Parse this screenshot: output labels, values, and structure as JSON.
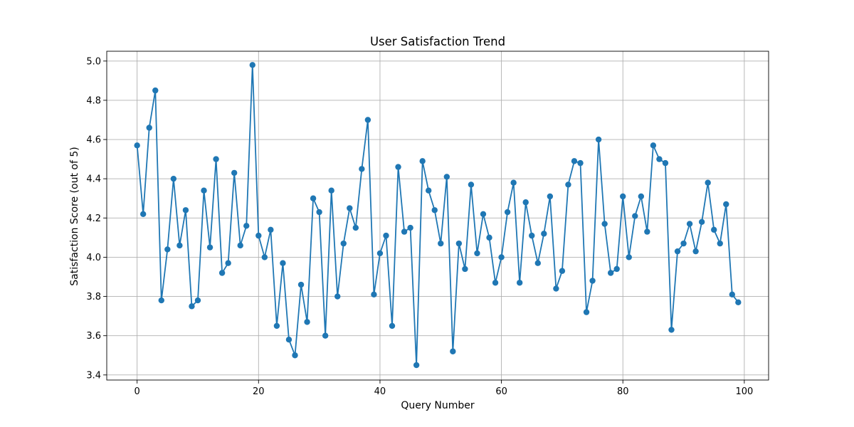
{
  "chart_data": {
    "type": "line",
    "title": "User Satisfaction Trend",
    "xlabel": "Query Number",
    "ylabel": "Satisfaction Score (out of 5)",
    "xlim": [
      -5.0,
      104.0
    ],
    "ylim": [
      3.374,
      5.05
    ],
    "grid": true,
    "xticks": [
      0,
      20,
      40,
      60,
      80,
      100
    ],
    "yticks": [
      3.4,
      3.6,
      3.8,
      4.0,
      4.2,
      4.4,
      4.6,
      4.8,
      5.0
    ],
    "xtick_labels": [
      "0",
      "20",
      "40",
      "60",
      "80",
      "100"
    ],
    "ytick_labels": [
      "3.4",
      "3.6",
      "3.8",
      "4.0",
      "4.2",
      "4.4",
      "4.6",
      "4.8",
      "5.0"
    ],
    "colors": {
      "series": "#1f77b4",
      "grid": "#b0b0b0"
    },
    "series": [
      {
        "marker": "circle",
        "x": [
          0,
          1,
          2,
          3,
          4,
          5,
          6,
          7,
          8,
          9,
          10,
          11,
          12,
          13,
          14,
          15,
          16,
          17,
          18,
          19,
          20,
          21,
          22,
          23,
          24,
          25,
          26,
          27,
          28,
          29,
          30,
          31,
          32,
          33,
          34,
          35,
          36,
          37,
          38,
          39,
          40,
          41,
          42,
          43,
          44,
          45,
          46,
          47,
          48,
          49,
          50,
          51,
          52,
          53,
          54,
          55,
          56,
          57,
          58,
          59,
          60,
          61,
          62,
          63,
          64,
          65,
          66,
          67,
          68,
          69,
          70,
          71,
          72,
          73,
          74,
          75,
          76,
          77,
          78,
          79,
          80,
          81,
          82,
          83,
          84,
          85,
          86,
          87,
          88,
          89,
          90,
          91,
          92,
          93,
          94,
          95,
          96,
          97,
          98,
          99
        ],
        "values": [
          4.57,
          4.22,
          4.66,
          4.85,
          3.78,
          4.04,
          4.4,
          4.06,
          4.24,
          3.75,
          3.78,
          4.34,
          4.05,
          4.5,
          3.92,
          3.97,
          4.43,
          4.06,
          4.16,
          4.98,
          4.11,
          4.0,
          4.14,
          3.65,
          3.97,
          3.58,
          3.5,
          3.86,
          3.67,
          4.3,
          4.23,
          3.6,
          4.34,
          3.8,
          4.07,
          4.25,
          4.15,
          4.45,
          4.7,
          3.81,
          4.02,
          4.11,
          3.65,
          4.46,
          4.13,
          4.15,
          3.45,
          4.49,
          4.34,
          4.24,
          4.07,
          4.41,
          3.52,
          4.07,
          3.94,
          4.37,
          4.02,
          4.22,
          4.1,
          3.87,
          4.0,
          4.23,
          4.38,
          3.87,
          4.28,
          4.11,
          3.97,
          4.12,
          4.31,
          3.84,
          3.93,
          4.37,
          4.49,
          4.48,
          3.72,
          3.88,
          4.6,
          4.17,
          3.92,
          3.94,
          4.31,
          4.0,
          4.21,
          4.31,
          4.13,
          4.57,
          4.5,
          4.48,
          3.63,
          4.03,
          4.07,
          4.17,
          4.03,
          4.18,
          4.38,
          4.14,
          4.07,
          4.27,
          3.81,
          3.77
        ]
      }
    ]
  }
}
